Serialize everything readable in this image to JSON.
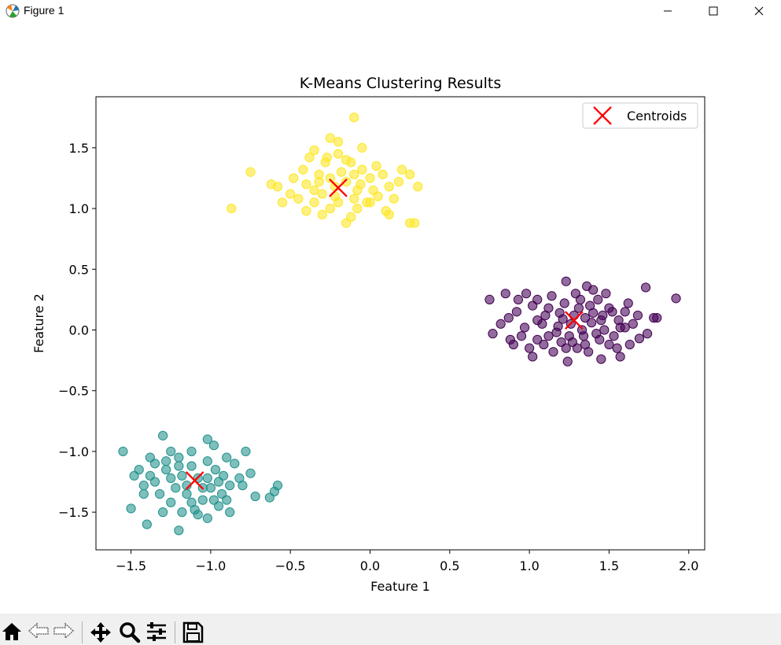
{
  "window": {
    "title": "Figure 1",
    "icon": "matplotlib-icon",
    "controls": [
      "minimize-icon",
      "maximize-icon",
      "close-icon"
    ]
  },
  "toolbar": {
    "items": [
      "home-icon",
      "back-arrow-icon",
      "forward-arrow-icon",
      "pan-icon",
      "zoom-icon",
      "configure-subplots-icon",
      "save-icon"
    ]
  },
  "chart_data": {
    "type": "scatter",
    "title": "K-Means Clustering Results",
    "xlabel": "Feature 1",
    "ylabel": "Feature 2",
    "xlim": [
      -1.72,
      2.1
    ],
    "ylim": [
      -1.81,
      1.92
    ],
    "xticks": [
      -1.5,
      -1.0,
      -0.5,
      0.0,
      0.5,
      1.0,
      1.5,
      2.0
    ],
    "yticks": [
      -1.5,
      -1.0,
      -0.5,
      0.0,
      0.5,
      1.0,
      1.5
    ],
    "xtick_labels": [
      "−1.5",
      "−1.0",
      "−0.5",
      "0.0",
      "0.5",
      "1.0",
      "1.5",
      "2.0"
    ],
    "ytick_labels": [
      "−1.5",
      "−1.0",
      "−0.5",
      "0.0",
      "0.5",
      "1.0",
      "1.5"
    ],
    "grid": false,
    "legend": {
      "position": "top-right",
      "entries": [
        "Centroids"
      ]
    },
    "colors": {
      "cluster_purple": "#440154",
      "cluster_teal": "#21918c",
      "cluster_yellow": "#fde725",
      "centroid": "#ff0000"
    },
    "series": [
      {
        "color": "#440154",
        "points": [
          [
            0.85,
            0.3
          ],
          [
            1.02,
            0.2
          ],
          [
            1.23,
            0.4
          ],
          [
            1.4,
            0.33
          ],
          [
            1.52,
            0.15
          ],
          [
            1.62,
            0.22
          ],
          [
            1.73,
            0.35
          ],
          [
            1.78,
            0.1
          ],
          [
            1.92,
            0.26
          ],
          [
            0.82,
            0.05
          ],
          [
            0.77,
            -0.03
          ],
          [
            0.9,
            -0.12
          ],
          [
            1.05,
            -0.08
          ],
          [
            1.15,
            -0.18
          ],
          [
            1.24,
            -0.26
          ],
          [
            1.35,
            -0.12
          ],
          [
            1.45,
            -0.24
          ],
          [
            1.55,
            -0.15
          ],
          [
            1.63,
            -0.12
          ],
          [
            1.74,
            -0.03
          ],
          [
            1.28,
            0.12
          ],
          [
            1.33,
            0.0
          ],
          [
            1.18,
            0.03
          ],
          [
            1.45,
            0.08
          ],
          [
            1.38,
            0.2
          ],
          [
            1.1,
            0.12
          ],
          [
            1.25,
            -0.05
          ],
          [
            1.42,
            -0.03
          ],
          [
            1.57,
            0.02
          ],
          [
            1.68,
            0.12
          ],
          [
            0.97,
            0.02
          ],
          [
            1.05,
            0.25
          ],
          [
            1.32,
            0.25
          ],
          [
            1.48,
            0.3
          ],
          [
            1.2,
            -0.1
          ],
          [
            1.3,
            -0.15
          ],
          [
            0.95,
            -0.05
          ],
          [
            1.12,
            0.18
          ],
          [
            1.5,
            0.18
          ],
          [
            1.6,
            0.02
          ],
          [
            0.75,
            0.25
          ],
          [
            0.87,
            0.1
          ],
          [
            1.0,
            -0.15
          ],
          [
            1.22,
            0.22
          ],
          [
            1.36,
            0.36
          ],
          [
            1.44,
            -0.08
          ],
          [
            1.53,
            -0.05
          ],
          [
            1.65,
            0.05
          ],
          [
            1.8,
            0.1
          ],
          [
            0.98,
            0.3
          ],
          [
            1.08,
            0.05
          ],
          [
            1.17,
            -0.02
          ],
          [
            1.26,
            0.05
          ],
          [
            1.34,
            -0.05
          ],
          [
            1.4,
            0.14
          ],
          [
            1.02,
            -0.22
          ],
          [
            1.12,
            -0.05
          ],
          [
            1.29,
            0.3
          ],
          [
            1.37,
            -0.18
          ],
          [
            1.57,
            -0.22
          ],
          [
            0.92,
            0.15
          ],
          [
            1.14,
            0.28
          ],
          [
            1.19,
            0.14
          ],
          [
            1.47,
            0.0
          ],
          [
            1.27,
            -0.1
          ],
          [
            1.31,
            0.18
          ],
          [
            1.39,
            0.06
          ],
          [
            1.05,
            0.08
          ],
          [
            1.6,
            0.15
          ],
          [
            1.69,
            -0.07
          ],
          [
            0.93,
            0.25
          ],
          [
            0.88,
            -0.08
          ],
          [
            1.5,
            -0.12
          ],
          [
            1.43,
            0.25
          ],
          [
            1.21,
            0.09
          ],
          [
            1.35,
            0.1
          ],
          [
            1.46,
            0.12
          ],
          [
            1.09,
            -0.12
          ],
          [
            1.23,
            -0.15
          ],
          [
            1.56,
            0.08
          ]
        ]
      },
      {
        "color": "#21918c",
        "points": [
          [
            -1.55,
            -1.0
          ],
          [
            -1.45,
            -1.15
          ],
          [
            -1.38,
            -1.05
          ],
          [
            -1.3,
            -0.87
          ],
          [
            -1.25,
            -1.0
          ],
          [
            -1.2,
            -1.05
          ],
          [
            -1.12,
            -1.0
          ],
          [
            -1.02,
            -0.9
          ],
          [
            -0.98,
            -0.95
          ],
          [
            -0.9,
            -1.05
          ],
          [
            -0.78,
            -1.0
          ],
          [
            -0.75,
            -1.18
          ],
          [
            -0.6,
            -1.33
          ],
          [
            -0.58,
            -1.28
          ],
          [
            -0.63,
            -1.38
          ],
          [
            -0.72,
            -1.37
          ],
          [
            -0.8,
            -1.28
          ],
          [
            -0.88,
            -1.5
          ],
          [
            -0.95,
            -1.45
          ],
          [
            -1.02,
            -1.55
          ],
          [
            -1.1,
            -1.48
          ],
          [
            -1.2,
            -1.65
          ],
          [
            -1.3,
            -1.5
          ],
          [
            -1.4,
            -1.6
          ],
          [
            -1.5,
            -1.47
          ],
          [
            -1.42,
            -1.35
          ],
          [
            -1.35,
            -1.25
          ],
          [
            -1.28,
            -1.15
          ],
          [
            -1.18,
            -1.2
          ],
          [
            -1.08,
            -1.22
          ],
          [
            -1.0,
            -1.3
          ],
          [
            -0.92,
            -1.2
          ],
          [
            -0.85,
            -1.1
          ],
          [
            -1.15,
            -1.35
          ],
          [
            -1.22,
            -1.3
          ],
          [
            -1.05,
            -1.4
          ],
          [
            -0.97,
            -1.15
          ],
          [
            -1.25,
            -1.42
          ],
          [
            -1.32,
            -1.35
          ],
          [
            -1.12,
            -1.12
          ],
          [
            -1.02,
            -1.08
          ],
          [
            -0.93,
            -1.35
          ],
          [
            -0.82,
            -1.22
          ],
          [
            -1.38,
            -1.2
          ],
          [
            -1.48,
            -1.2
          ],
          [
            -1.18,
            -1.5
          ],
          [
            -1.08,
            -1.52
          ],
          [
            -1.28,
            -1.08
          ],
          [
            -0.88,
            -1.28
          ],
          [
            -1.02,
            -1.22
          ],
          [
            -1.15,
            -1.28
          ],
          [
            -1.2,
            -1.12
          ],
          [
            -0.95,
            -1.25
          ],
          [
            -1.35,
            -1.1
          ],
          [
            -1.25,
            -1.22
          ],
          [
            -1.05,
            -1.3
          ],
          [
            -0.98,
            -1.4
          ],
          [
            -1.12,
            -1.42
          ],
          [
            -0.9,
            -1.4
          ],
          [
            -1.42,
            -1.28
          ]
        ]
      },
      {
        "color": "#fde725",
        "points": [
          [
            -0.1,
            1.75
          ],
          [
            -0.2,
            1.55
          ],
          [
            -0.35,
            1.48
          ],
          [
            -0.25,
            1.58
          ],
          [
            -0.05,
            1.5
          ],
          [
            0.2,
            1.32
          ],
          [
            0.25,
            1.28
          ],
          [
            0.3,
            1.18
          ],
          [
            0.15,
            1.08
          ],
          [
            0.25,
            0.88
          ],
          [
            0.28,
            0.88
          ],
          [
            0.1,
            0.98
          ],
          [
            -0.02,
            1.05
          ],
          [
            -0.12,
            0.93
          ],
          [
            -0.25,
            1.0
          ],
          [
            -0.4,
            0.98
          ],
          [
            -0.5,
            1.12
          ],
          [
            -0.58,
            1.18
          ],
          [
            -0.62,
            1.2
          ],
          [
            -0.75,
            1.3
          ],
          [
            -0.87,
            1.0
          ],
          [
            -0.3,
            1.12
          ],
          [
            -0.22,
            1.18
          ],
          [
            -0.15,
            1.22
          ],
          [
            -0.08,
            1.15
          ],
          [
            0.0,
            1.25
          ],
          [
            0.05,
            1.1
          ],
          [
            -0.32,
            1.28
          ],
          [
            -0.42,
            1.32
          ],
          [
            -0.35,
            1.05
          ],
          [
            -0.18,
            1.3
          ],
          [
            -0.28,
            1.38
          ],
          [
            -0.12,
            1.38
          ],
          [
            -0.05,
            1.32
          ],
          [
            0.08,
            1.28
          ],
          [
            0.12,
            1.18
          ],
          [
            -0.4,
            1.2
          ],
          [
            -0.48,
            1.25
          ],
          [
            -0.2,
            1.05
          ],
          [
            -0.1,
            1.08
          ],
          [
            -0.25,
            1.25
          ],
          [
            -0.15,
            0.88
          ],
          [
            0.02,
            1.15
          ],
          [
            -0.38,
            1.42
          ],
          [
            -0.3,
            0.95
          ],
          [
            -0.06,
            1.2
          ],
          [
            0.18,
            1.22
          ],
          [
            -0.45,
            1.08
          ],
          [
            -0.35,
            1.15
          ],
          [
            -0.2,
            1.45
          ],
          [
            -0.15,
            1.4
          ],
          [
            0.04,
            1.35
          ],
          [
            -0.55,
            1.05
          ],
          [
            -0.08,
            1.0
          ],
          [
            0.12,
            0.95
          ],
          [
            -0.27,
            1.42
          ],
          [
            -0.22,
            1.1
          ],
          [
            -0.32,
            1.22
          ],
          [
            0.0,
            1.05
          ],
          [
            -0.1,
            1.28
          ]
        ]
      }
    ],
    "centroids": [
      [
        1.28,
        0.08
      ],
      [
        -1.1,
        -1.24
      ],
      [
        -0.2,
        1.17
      ]
    ]
  }
}
